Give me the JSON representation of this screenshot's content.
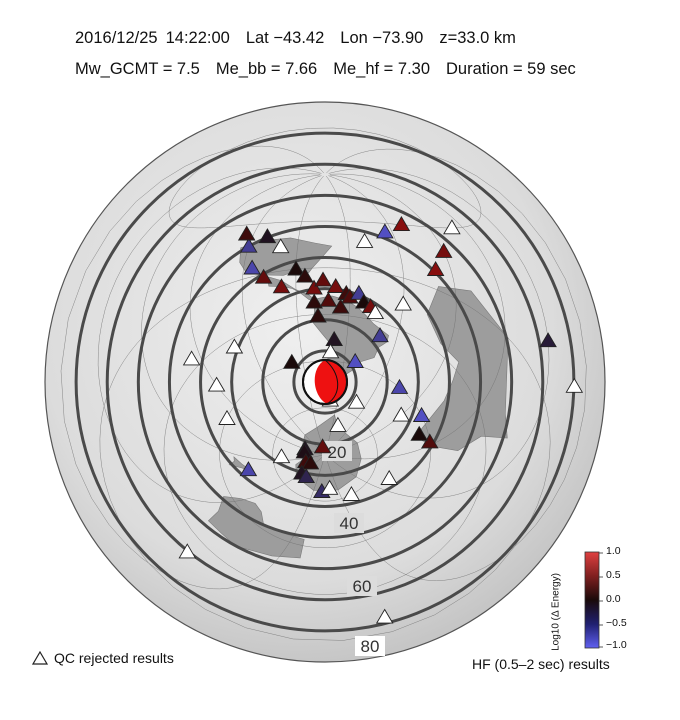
{
  "header": {
    "date": "2016/12/25",
    "time": "14:22:00",
    "lat": "Lat −43.42",
    "lon": "Lon −73.90",
    "depth": "z=33.0 km",
    "mw": "Mw_GCMT = 7.5",
    "me_bb": "Me_bb = 7.66",
    "me_hf": "Me_hf = 7.30",
    "duration": "Duration = 59 sec"
  },
  "distance_labels": [
    "20",
    "40",
    "60",
    "80"
  ],
  "legend": {
    "qc": "QC rejected results",
    "hf": "HF (0.5–2 sec) results"
  },
  "colorbar": {
    "title": "Log10 (Δ Energy)",
    "ticks": [
      "1.0",
      "0.5",
      "0.0",
      "−0.5",
      "−1.0"
    ],
    "range": [
      -1.0,
      1.0
    ],
    "colors": {
      "high": "#d01010",
      "mid": "#1a0a0a",
      "low": "#6060f0"
    }
  },
  "stations": [
    {
      "lon": -20,
      "lat": 60,
      "v": 0.6
    },
    {
      "lon": -35,
      "lat": 55,
      "v": -0.8
    },
    {
      "lon": -50,
      "lat": 48,
      "v": null
    },
    {
      "lon": -10,
      "lat": 40,
      "v": 0.6
    },
    {
      "lon": 0,
      "lat": 50,
      "v": 0.5
    },
    {
      "lon": 20,
      "lat": 60,
      "v": null
    },
    {
      "lon": 60,
      "lat": 40,
      "v": -0.2
    },
    {
      "lon": 80,
      "lat": 40,
      "v": null
    },
    {
      "lon": 100,
      "lat": 20,
      "v": null
    },
    {
      "lon": 130,
      "lat": 10,
      "v": null
    },
    {
      "lon": -115,
      "lat": 35,
      "v": -0.7
    },
    {
      "lon": -108,
      "lat": 28,
      "v": 0.4
    },
    {
      "lon": -98,
      "lat": 20,
      "v": 0.5
    },
    {
      "lon": -120,
      "lat": 48,
      "v": -0.6
    },
    {
      "lon": -125,
      "lat": 55,
      "v": 0.2
    },
    {
      "lon": -110,
      "lat": 52,
      "v": -0.1
    },
    {
      "lon": -100,
      "lat": 45,
      "v": null
    },
    {
      "lon": -90,
      "lat": 30,
      "v": 0.0
    },
    {
      "lon": -85,
      "lat": 25,
      "v": 0.1
    },
    {
      "lon": -80,
      "lat": 17,
      "v": 0.5
    },
    {
      "lon": -75,
      "lat": 22,
      "v": 0.4
    },
    {
      "lon": -68,
      "lat": 18,
      "v": 0.5
    },
    {
      "lon": -62,
      "lat": 14,
      "v": 0.2
    },
    {
      "lon": -60,
      "lat": 12,
      "v": 0.3
    },
    {
      "lon": -55,
      "lat": 15,
      "v": -0.6
    },
    {
      "lon": -52,
      "lat": 10,
      "v": 0.0
    },
    {
      "lon": -48,
      "lat": 8,
      "v": 0.5
    },
    {
      "lon": -45,
      "lat": 5,
      "v": null
    },
    {
      "lon": -30,
      "lat": 15,
      "v": null
    },
    {
      "lon": -80,
      "lat": 8,
      "v": 0.1
    },
    {
      "lon": -72,
      "lat": 9,
      "v": 0.3
    },
    {
      "lon": -65,
      "lat": 5,
      "v": 0.2
    },
    {
      "lon": -78,
      "lat": -1,
      "v": 0.1
    },
    {
      "lon": -68,
      "lat": -16,
      "v": -0.1
    },
    {
      "lon": -70,
      "lat": -24,
      "v": null
    },
    {
      "lon": -40,
      "lat": -8,
      "v": -0.6
    },
    {
      "lon": -52,
      "lat": -28,
      "v": -0.8
    },
    {
      "lon": -98,
      "lat": -28,
      "v": 0.0
    },
    {
      "lon": -68,
      "lat": -55,
      "v": null
    },
    {
      "lon": -40,
      "lat": -52,
      "v": null
    },
    {
      "lon": -15,
      "lat": -30,
      "v": -0.7
    },
    {
      "lon": 0,
      "lat": -40,
      "v": null
    },
    {
      "lon": 10,
      "lat": -30,
      "v": -0.8
    },
    {
      "lon": 28,
      "lat": -30,
      "v": 0.3
    },
    {
      "lon": 20,
      "lat": -35,
      "v": 0.0
    },
    {
      "lon": 50,
      "lat": -50,
      "v": null
    },
    {
      "lon": -130,
      "lat": -5,
      "v": null
    },
    {
      "lon": -150,
      "lat": -15,
      "v": null
    },
    {
      "lon": -160,
      "lat": -30,
      "v": null
    },
    {
      "lon": -155,
      "lat": 5,
      "v": null
    },
    {
      "lon": -50,
      "lat": -70,
      "v": null
    },
    {
      "lon": -90,
      "lat": -85,
      "v": 0.4
    },
    {
      "lon": -150,
      "lat": -78,
      "v": -0.1
    },
    {
      "lon": -160,
      "lat": -78,
      "v": -0.05
    },
    {
      "lon": 170,
      "lat": -78,
      "v": 0.2
    },
    {
      "lon": 160,
      "lat": -80,
      "v": 0.1
    },
    {
      "lon": 150,
      "lat": -72,
      "v": -0.1
    },
    {
      "lon": 140,
      "lat": -72,
      "v": -0.3
    },
    {
      "lon": 110,
      "lat": -66,
      "v": -0.4
    },
    {
      "lon": 100,
      "lat": -68,
      "v": null
    },
    {
      "lon": 80,
      "lat": -60,
      "v": null
    },
    {
      "lon": 170,
      "lat": -45,
      "v": -0.7
    },
    {
      "lon": -175,
      "lat": -65,
      "v": null
    }
  ]
}
